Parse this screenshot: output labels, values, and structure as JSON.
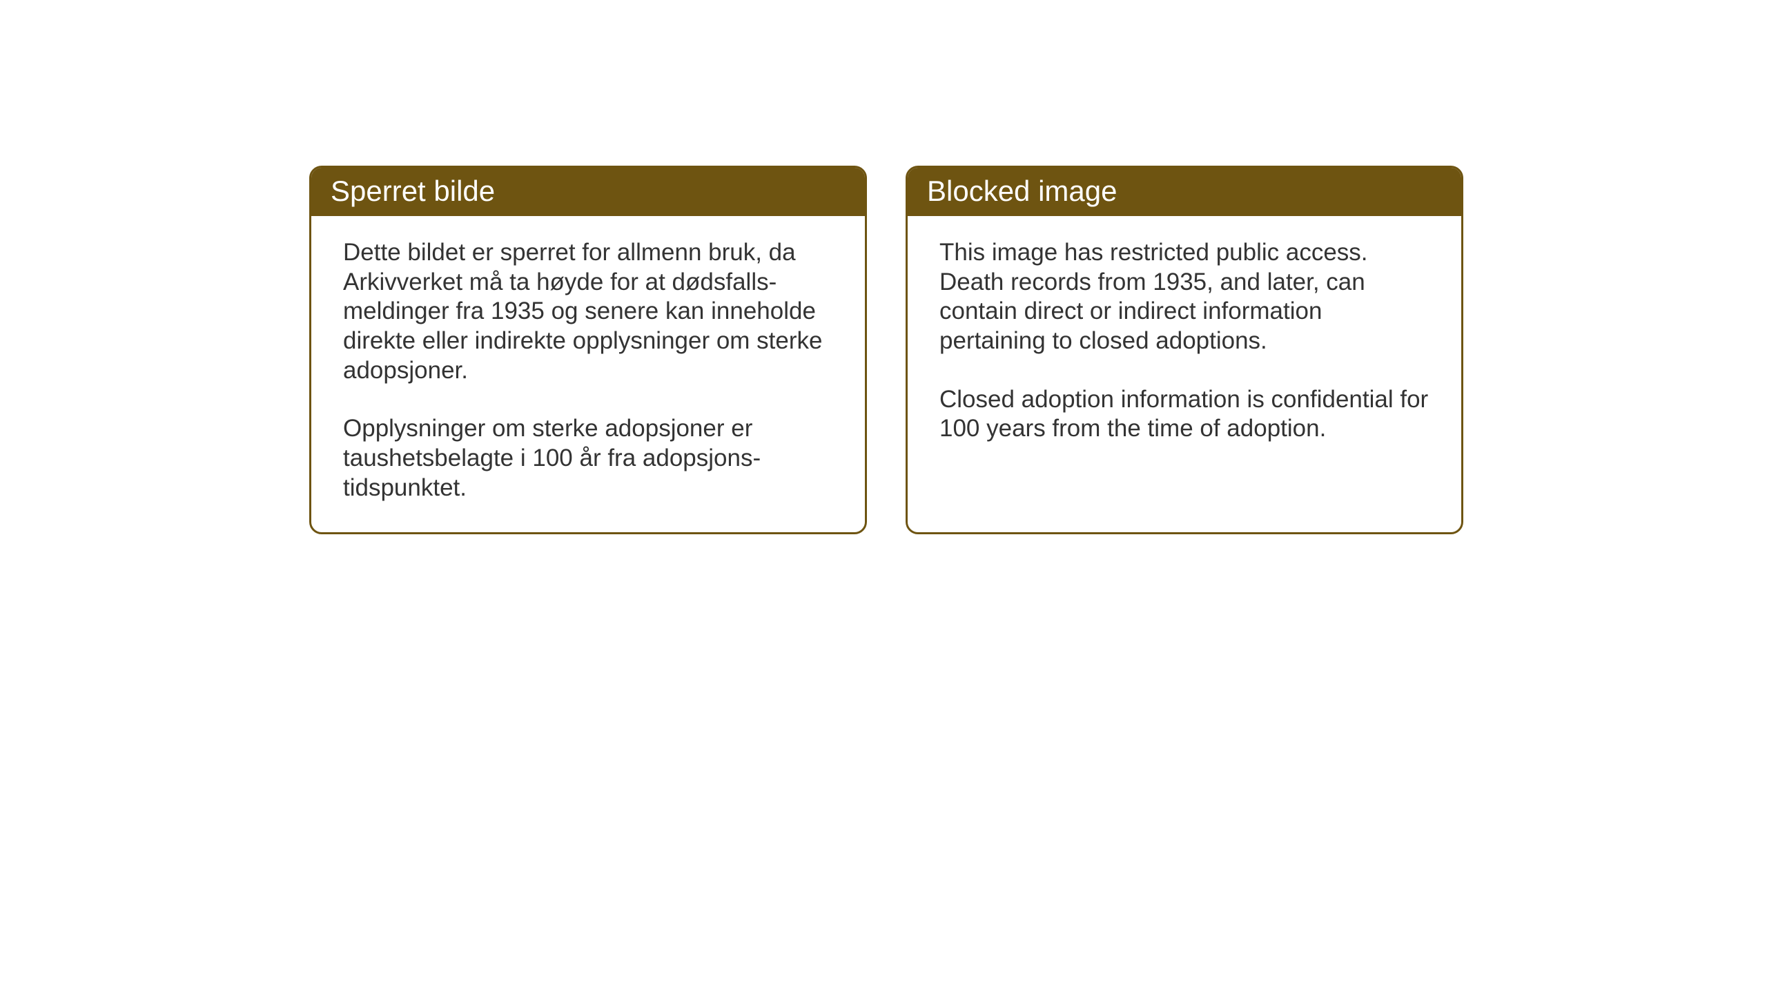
{
  "layout": {
    "background_color": "#ffffff",
    "card_border_color": "#6e5411",
    "card_header_bg": "#6e5411",
    "card_header_text_color": "#ffffff",
    "card_body_text_color": "#333333",
    "card_border_radius": 18,
    "card_border_width": 3,
    "header_fontsize": 42,
    "body_fontsize": 35
  },
  "cards": {
    "left": {
      "title": "Sperret bilde",
      "paragraph1": "Dette bildet er sperret for allmenn bruk, da Arkivverket må ta høyde for at dødsfalls-meldinger fra 1935 og senere kan inneholde direkte eller indirekte opplysninger om sterke adopsjoner.",
      "paragraph2": "Opplysninger om sterke adopsjoner er taushetsbelagte i 100 år fra adopsjons-tidspunktet."
    },
    "right": {
      "title": "Blocked image",
      "paragraph1": "This image has restricted public access. Death records from 1935, and later, can contain direct or indirect information pertaining to closed adoptions.",
      "paragraph2": "Closed adoption information is confidential for 100 years from the time of adoption."
    }
  }
}
